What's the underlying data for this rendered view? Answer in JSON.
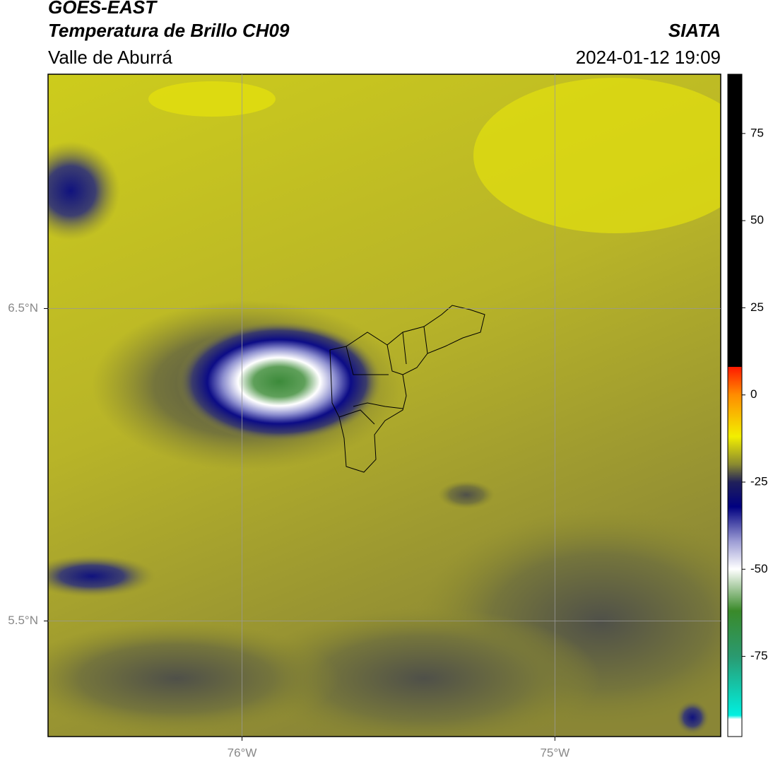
{
  "chart_data": {
    "type": "map",
    "title": "GOES-EAST",
    "subtitle": "Temperatura de Brillo CH09",
    "region": "Valle de Aburrá",
    "source": "SIATA",
    "datetime": "2024-01-12 19:09",
    "xlim": [
      -76.62,
      -74.47
    ],
    "ylim": [
      5.13,
      7.25
    ],
    "xticks": [
      {
        "value": -76,
        "label": "76°W"
      },
      {
        "value": -75,
        "label": "75°W"
      }
    ],
    "yticks": [
      {
        "value": 6.5,
        "label": "6.5°N"
      },
      {
        "value": 5.5,
        "label": "5.5°N"
      }
    ],
    "grid": true,
    "colorbar": {
      "lim": [
        -98,
        92
      ],
      "ticks": [
        75,
        50,
        25,
        0,
        -25,
        -50,
        -75
      ]
    }
  }
}
